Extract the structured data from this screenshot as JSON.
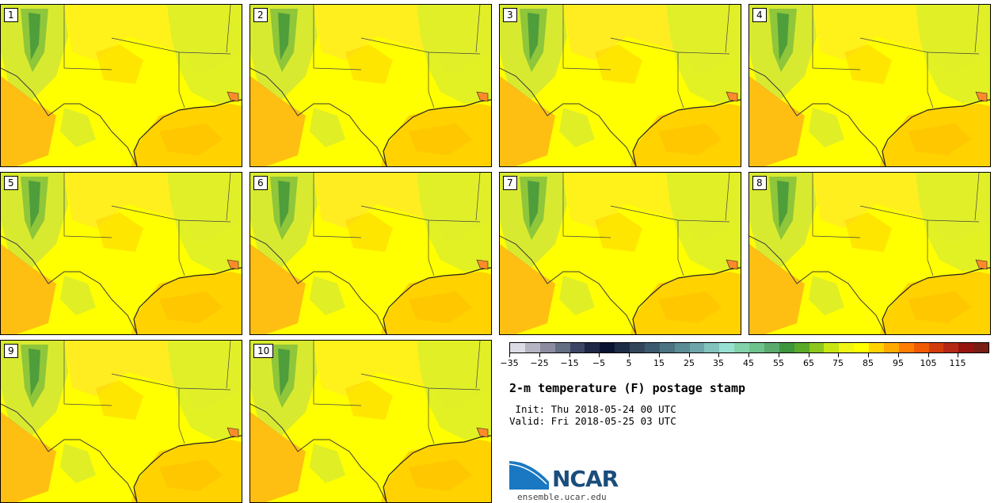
{
  "title": "2-m temperature (F) postage stamp",
  "init_text": " Init: Thu 2018-05-24 00 UTC",
  "valid_text": "Valid: Fri 2018-05-25 03 UTC",
  "panels": [
    {
      "label": "1"
    },
    {
      "label": "2"
    },
    {
      "label": "3"
    },
    {
      "label": "4"
    },
    {
      "label": "5"
    },
    {
      "label": "6"
    },
    {
      "label": "7"
    },
    {
      "label": "8"
    },
    {
      "label": "9"
    },
    {
      "label": "10"
    }
  ],
  "colorbar": {
    "colors": [
      "#dcdce6",
      "#b4b4c3",
      "#8c8ca0",
      "#646e82",
      "#3c4664",
      "#1e2846",
      "#0a1432",
      "#1e2d46",
      "#32465a",
      "#3c5a6e",
      "#4b7382",
      "#5a8c96",
      "#6ea5aa",
      "#82c3be",
      "#96e1d2",
      "#82d2aa",
      "#6ec38c",
      "#5aaa6e",
      "#3c963c",
      "#5aaa28",
      "#8cc81e",
      "#c8e614",
      "#f0f514",
      "#ffff00",
      "#ffd200",
      "#ffaa00",
      "#ff7d00",
      "#f05a00",
      "#d23c0a",
      "#b42814",
      "#96140f",
      "#781e14"
    ],
    "tick_labels": [
      "−35",
      "−25",
      "−15",
      "−5",
      "5",
      "15",
      "25",
      "35",
      "45",
      "55",
      "65",
      "75",
      "85",
      "95",
      "105",
      "115"
    ]
  },
  "logo": {
    "text": "NCAR",
    "url": "ensemble.ucar.edu"
  }
}
